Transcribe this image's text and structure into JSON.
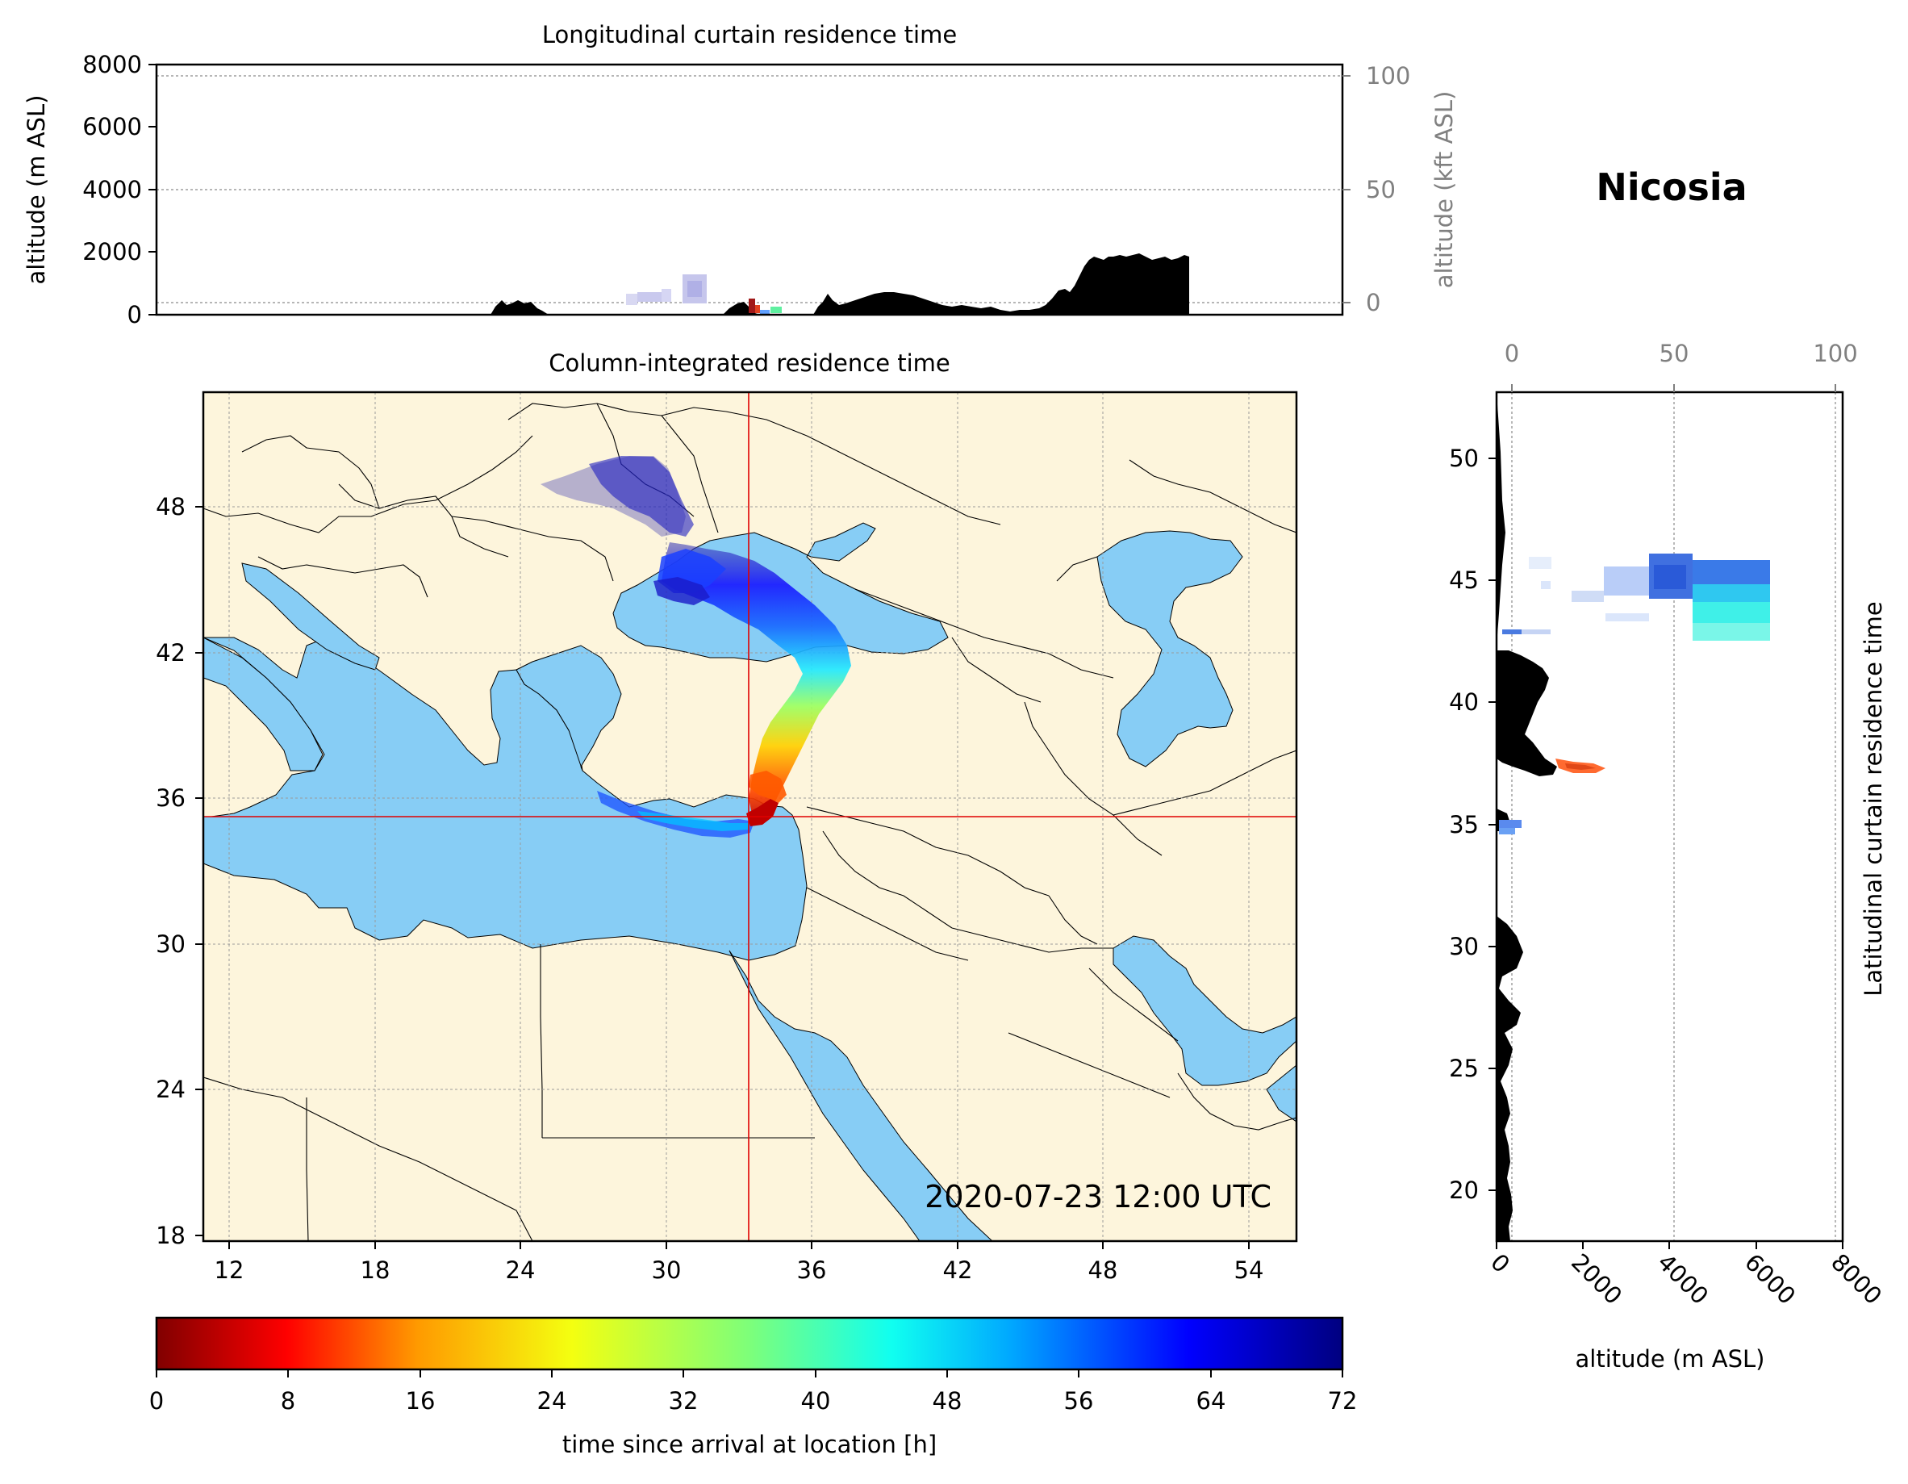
{
  "figure": {
    "location_name": "Nicosia",
    "timestamp": "2020-07-23 12:00 UTC"
  },
  "longitudinal_panel": {
    "title": "Longitudinal curtain residence time",
    "ylabel_left": "altitude (m ASL)",
    "ylabel_right": "altitude (kft ASL)",
    "left_ticks": [
      "0",
      "2000",
      "4000",
      "6000",
      "8000"
    ],
    "right_ticks": [
      "0",
      "50",
      "100"
    ]
  },
  "map_panel": {
    "title": "Column-integrated residence time",
    "x_ticks": [
      "12",
      "18",
      "24",
      "30",
      "36",
      "42",
      "48",
      "54"
    ],
    "y_ticks": [
      "18",
      "24",
      "30",
      "36",
      "42",
      "48"
    ],
    "crosshair": {
      "lon": 33.4,
      "lat": 35.2
    },
    "colors": {
      "land": "#fdf5dc",
      "sea": "#87cdf5",
      "crosshair": "#e00000"
    }
  },
  "latitudinal_panel": {
    "ylabel": "Latitudinal curtain residence time",
    "xlabel": "altitude (m ASL)",
    "bottom_ticks": [
      "0",
      "2000",
      "4000",
      "6000",
      "8000"
    ],
    "top_ticks": [
      "0",
      "50",
      "100"
    ],
    "lat_ticks": [
      "20",
      "25",
      "30",
      "35",
      "40",
      "45",
      "50"
    ]
  },
  "colorbar": {
    "label": "time since arrival at location [h]",
    "ticks": [
      "0",
      "8",
      "16",
      "24",
      "32",
      "40",
      "48",
      "56",
      "64",
      "72"
    ],
    "colormap": "jet_r",
    "range": [
      0,
      72
    ]
  }
}
